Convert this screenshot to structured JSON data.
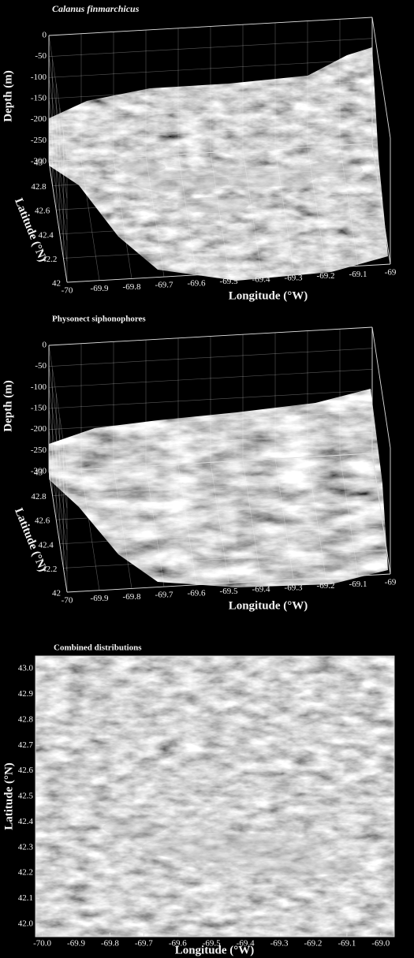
{
  "chart_data": [
    {
      "type": "surface3d",
      "title": "Calanus finmarchicus",
      "xlabel": "Longitude (°W)",
      "ylabel": "Latitude (°N)",
      "zlabel": "Depth (m)",
      "xlim": [
        -70,
        -69
      ],
      "xticks": [
        -70,
        -69.9,
        -69.8,
        -69.7,
        -69.6,
        -69.5,
        -69.4,
        -69.3,
        -69.2,
        -69.1,
        -69
      ],
      "ylim": [
        42,
        43
      ],
      "yticks": [
        42,
        42.2,
        42.4,
        42.6,
        42.8,
        43
      ],
      "zlim": [
        -300,
        0
      ],
      "zticks": [
        0,
        -50,
        -100,
        -150,
        -200,
        -250,
        -300
      ],
      "grid": true
    },
    {
      "type": "surface3d",
      "title": "Physonect siphonophores",
      "xlabel": "Longitude (°W)",
      "ylabel": "Latitude (°N)",
      "zlabel": "Depth (m)",
      "xlim": [
        -70,
        -69
      ],
      "xticks": [
        -70,
        -69.9,
        -69.8,
        -69.7,
        -69.6,
        -69.5,
        -69.4,
        -69.3,
        -69.2,
        -69.1,
        -69
      ],
      "ylim": [
        42,
        43
      ],
      "yticks": [
        42,
        42.2,
        42.4,
        42.6,
        42.8,
        43
      ],
      "zlim": [
        -300,
        0
      ],
      "zticks": [
        0,
        -50,
        -100,
        -150,
        -200,
        -250,
        -300
      ],
      "grid": true
    },
    {
      "type": "map",
      "title": "Combined distributions",
      "xlabel": "Longitude (°W)",
      "ylabel": "Latitude (°N)",
      "xlim": [
        -70.02,
        -68.96
      ],
      "xticks": [
        {
          "value": -70,
          "label": "-70.0"
        },
        -69.9,
        -69.8,
        -69.7,
        -69.6,
        -69.5,
        -69.4,
        -69.3,
        -69.2,
        -69.1,
        {
          "value": -69,
          "label": "-69.0"
        }
      ],
      "ylim": [
        41.95,
        43.05
      ],
      "yticks": [
        {
          "value": 42,
          "label": "42.0"
        },
        42.1,
        42.2,
        42.3,
        42.4,
        42.5,
        42.6,
        42.7,
        42.8,
        42.9,
        {
          "value": 43,
          "label": "43.0"
        }
      ]
    }
  ]
}
